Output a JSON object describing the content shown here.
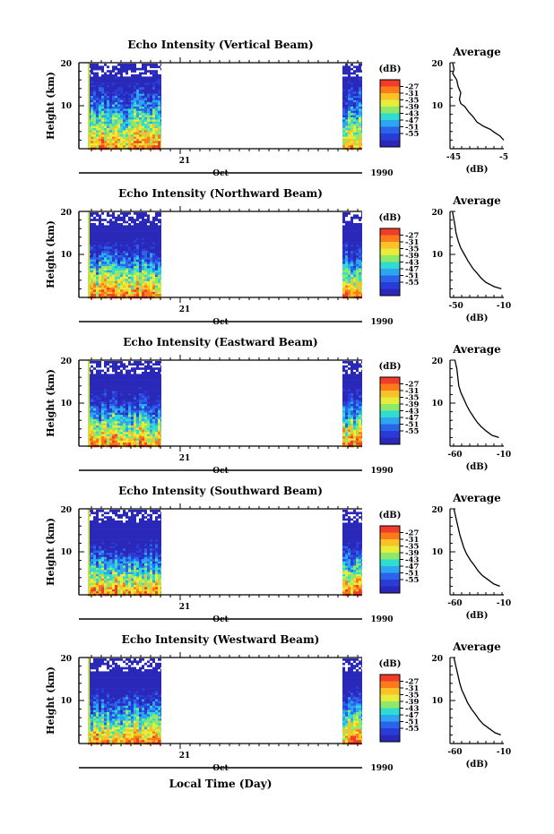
{
  "chart_data": {
    "type": "heatmap",
    "x_axis": {
      "tick_label": "21",
      "month_label": "Oct",
      "year_label": "1990",
      "xlabel": "Local Time (Day)"
    },
    "colorbar": {
      "unit": "(dB)",
      "levels": [
        "-27",
        "-31",
        "-35",
        "-39",
        "-43",
        "-47",
        "-51",
        "-55"
      ],
      "colors": [
        "#f03c28",
        "#ff7a1a",
        "#f8c228",
        "#e8ec3a",
        "#8ee86a",
        "#30dcd0",
        "#2ca6f0",
        "#2a64e8",
        "#2a3cd8",
        "#2a28b8"
      ]
    },
    "panels": [
      {
        "title": "Echo Intensity (Vertical Beam)",
        "ylabel": "Height (km)",
        "yticks": [
          "20",
          "10"
        ],
        "avg_title": "Average",
        "avg_xlabel": "(dB)",
        "avg_xticks": [
          "-45",
          "-5"
        ],
        "avg_xlim": [
          -45,
          -5
        ],
        "avg_profile": [
          [
            -5,
            2
          ],
          [
            -8,
            3
          ],
          [
            -12,
            3.8
          ],
          [
            -15,
            4.5
          ],
          [
            -20,
            5.2
          ],
          [
            -25,
            6.2
          ],
          [
            -28,
            7.5
          ],
          [
            -31,
            8.5
          ],
          [
            -34,
            9.8
          ],
          [
            -37,
            10.5
          ],
          [
            -38,
            11.5
          ],
          [
            -37,
            13
          ],
          [
            -39,
            14.5
          ],
          [
            -40,
            16
          ],
          [
            -43,
            17.5
          ],
          [
            -42,
            18.5
          ],
          [
            -43,
            20
          ]
        ]
      },
      {
        "title": "Echo Intensity (Northward Beam)",
        "ylabel": "Height (km)",
        "yticks": [
          "20",
          "10"
        ],
        "avg_title": "Average",
        "avg_xlabel": "(dB)",
        "avg_xticks": [
          "-50",
          "-10"
        ],
        "avg_xlim": [
          -55,
          -10
        ],
        "avg_profile": [
          [
            -12,
            2
          ],
          [
            -18,
            2.5
          ],
          [
            -25,
            3.5
          ],
          [
            -29,
            4.5
          ],
          [
            -32,
            5.5
          ],
          [
            -36,
            6.8
          ],
          [
            -40,
            8.5
          ],
          [
            -43,
            10
          ],
          [
            -46,
            11.5
          ],
          [
            -48,
            13
          ],
          [
            -50,
            15
          ],
          [
            -51,
            17
          ],
          [
            -52,
            18.5
          ],
          [
            -53,
            20
          ]
        ]
      },
      {
        "title": "Echo Intensity (Eastward Beam)",
        "ylabel": "Height (km)",
        "yticks": [
          "20",
          "10"
        ],
        "avg_title": "Average",
        "avg_xlabel": "(dB)",
        "avg_xticks": [
          "-60",
          "-10"
        ],
        "avg_xlim": [
          -65,
          -10
        ],
        "avg_profile": [
          [
            -15,
            2
          ],
          [
            -22,
            2.5
          ],
          [
            -28,
            3.5
          ],
          [
            -33,
            4.5
          ],
          [
            -37,
            5.5
          ],
          [
            -41,
            6.8
          ],
          [
            -45,
            8.2
          ],
          [
            -48,
            9.5
          ],
          [
            -51,
            11
          ],
          [
            -54,
            12.5
          ],
          [
            -56,
            14
          ],
          [
            -57,
            16
          ],
          [
            -58,
            18
          ],
          [
            -60,
            20
          ]
        ]
      },
      {
        "title": "Echo Intensity (Southward Beam)",
        "ylabel": "Height (km)",
        "yticks": [
          "20",
          "10"
        ],
        "avg_title": "Average",
        "avg_xlabel": "(dB)",
        "avg_xticks": [
          "-60",
          "-10"
        ],
        "avg_xlim": [
          -65,
          -10
        ],
        "avg_profile": [
          [
            -14,
            2
          ],
          [
            -20,
            2.5
          ],
          [
            -26,
            3.5
          ],
          [
            -32,
            4.5
          ],
          [
            -36,
            5.5
          ],
          [
            -40,
            6.8
          ],
          [
            -44,
            8
          ],
          [
            -48,
            9.5
          ],
          [
            -51,
            11
          ],
          [
            -53,
            12.5
          ],
          [
            -55,
            14
          ],
          [
            -57,
            16
          ],
          [
            -59,
            18
          ],
          [
            -61,
            20
          ]
        ]
      },
      {
        "title": "Echo Intensity (Westward Beam)",
        "ylabel": "Height (km)",
        "yticks": [
          "20",
          "10"
        ],
        "avg_title": "Average",
        "avg_xlabel": "(dB)",
        "avg_xticks": [
          "-60",
          "-10"
        ],
        "avg_xlim": [
          -65,
          -10
        ],
        "avg_profile": [
          [
            -13,
            2
          ],
          [
            -19,
            2.5
          ],
          [
            -25,
            3.5
          ],
          [
            -31,
            4.5
          ],
          [
            -35,
            5.5
          ],
          [
            -39,
            6.8
          ],
          [
            -43,
            8
          ],
          [
            -47,
            9.5
          ],
          [
            -50,
            11
          ],
          [
            -53,
            12.5
          ],
          [
            -55,
            14
          ],
          [
            -57,
            16
          ],
          [
            -59,
            18
          ],
          [
            -61,
            20
          ]
        ]
      }
    ]
  }
}
